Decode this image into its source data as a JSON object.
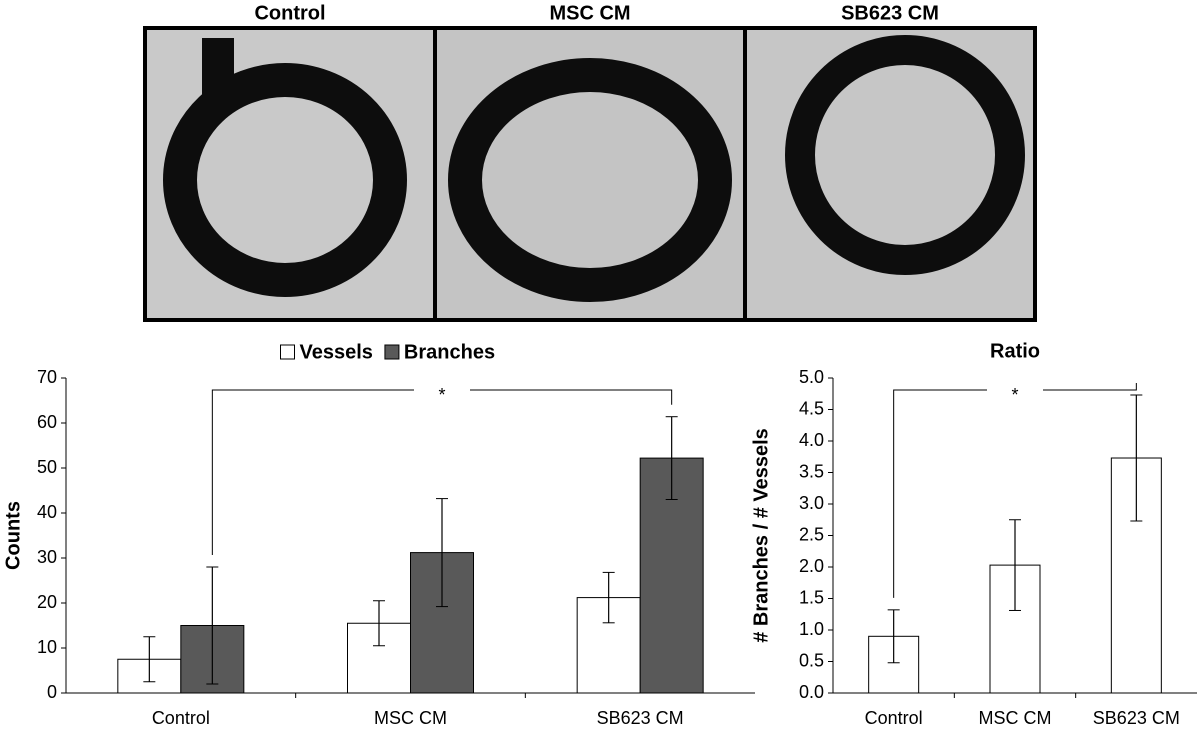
{
  "image_panels": [
    "Control",
    "MSC CM",
    "SB623 CM"
  ],
  "chart_data": [
    {
      "type": "bar",
      "ylabel": "Counts",
      "categories": [
        "Control",
        "MSC CM",
        "SB623 CM"
      ],
      "series": [
        {
          "name": "Vessels",
          "color": "#ffffff",
          "values": [
            7.5,
            15.5,
            21.2
          ],
          "errors": [
            5,
            5,
            5.6
          ]
        },
        {
          "name": "Branches",
          "color": "#595959",
          "values": [
            15,
            31.2,
            52.2
          ],
          "errors": [
            13,
            12,
            9.2
          ]
        }
      ],
      "ylim": [
        0,
        70
      ],
      "yticks": [
        0,
        10,
        20,
        30,
        40,
        50,
        60,
        70
      ],
      "legend": "top",
      "significance": "*"
    },
    {
      "type": "bar",
      "title": "Ratio",
      "ylabel": "# Branches / # Vessels",
      "categories": [
        "Control",
        "MSC CM",
        "SB623 CM"
      ],
      "values": [
        0.9,
        2.03,
        3.73
      ],
      "errors": [
        0.42,
        0.72,
        1.0
      ],
      "color": "#ffffff",
      "ylim": [
        0,
        5
      ],
      "yticks": [
        {
          "value": 0,
          "label": "0.0"
        },
        {
          "value": 0.5,
          "label": "0.5"
        },
        {
          "value": 1,
          "label": "1.0"
        },
        {
          "value": 1.5,
          "label": "1.5"
        },
        {
          "value": 2,
          "label": "2.0"
        },
        {
          "value": 2.5,
          "label": "2.5"
        },
        {
          "value": 3,
          "label": "3.0"
        },
        {
          "value": 3.5,
          "label": "3.5"
        },
        {
          "value": 4,
          "label": "4.0"
        },
        {
          "value": 4.5,
          "label": "4.5"
        },
        {
          "value": 5,
          "label": "5.0"
        }
      ],
      "significance": "*"
    }
  ]
}
